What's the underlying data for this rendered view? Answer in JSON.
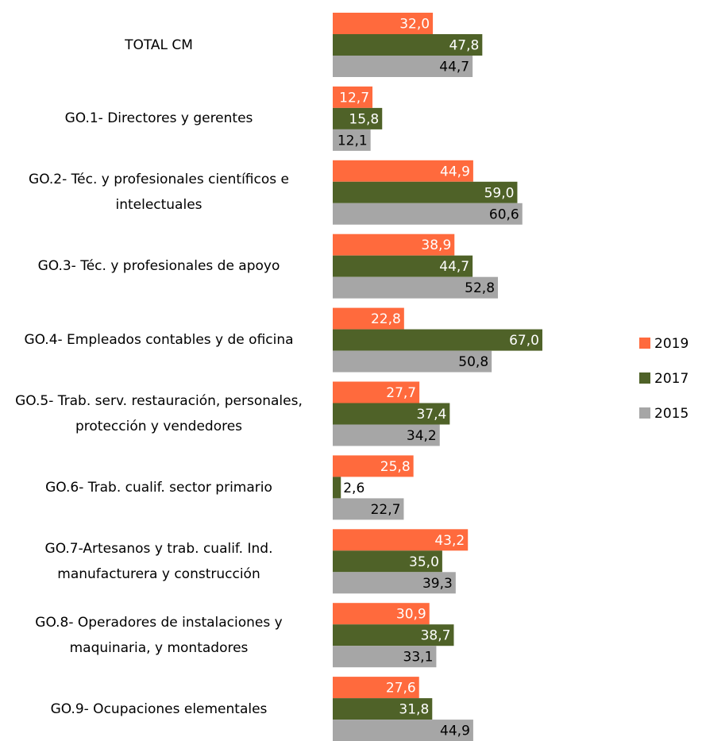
{
  "chart_data": {
    "type": "hbar",
    "categories": [
      "TOTAL CM",
      "GO.1- Directores y gerentes",
      "GO.2- Téc. y profesionales científicos e intelectuales",
      "GO.3- Téc. y profesionales de apoyo",
      "GO.4- Empleados contables y de oficina",
      "GO.5- Trab. serv. restauración, personales, protección y vendedores",
      "GO.6- Trab. cualif. sector primario",
      "GO.7-Artesanos y trab. cualif. Ind. manufacturera y construcción",
      "GO.8- Operadores de instalaciones y maquinaria, y montadores",
      "GO.9- Ocupaciones elementales"
    ],
    "series": [
      {
        "name": "2019",
        "color": "#ff6a3d",
        "label_color": "#ffffff",
        "values": [
          32.0,
          12.7,
          44.9,
          38.9,
          22.8,
          27.7,
          25.8,
          43.2,
          30.9,
          27.6
        ],
        "value_labels": [
          "32,0",
          "12,7",
          "44,9",
          "38,9",
          "22,8",
          "27,7",
          "25,8",
          "43,2",
          "30,9",
          "27,6"
        ]
      },
      {
        "name": "2017",
        "color": "#4f6228",
        "label_color": "#ffffff",
        "values": [
          47.8,
          15.8,
          59.0,
          44.7,
          67.0,
          37.4,
          2.6,
          35.0,
          38.7,
          31.8
        ],
        "value_labels": [
          "47,8",
          "15,8",
          "59,0",
          "44,7",
          "67,0",
          "37,4",
          "2,6",
          "35,0",
          "38,7",
          "31,8"
        ]
      },
      {
        "name": "2015",
        "color": "#a6a6a6",
        "label_color": "#000000",
        "values": [
          44.7,
          12.1,
          60.6,
          52.8,
          50.8,
          34.2,
          22.7,
          39.3,
          33.1,
          44.9
        ],
        "value_labels": [
          "44,7",
          "12,1",
          "60,6",
          "52,8",
          "50,8",
          "34,2",
          "22,7",
          "39,3",
          "33,1",
          "44,9"
        ]
      }
    ],
    "xlim": [
      0,
      100
    ],
    "legend": "right"
  }
}
